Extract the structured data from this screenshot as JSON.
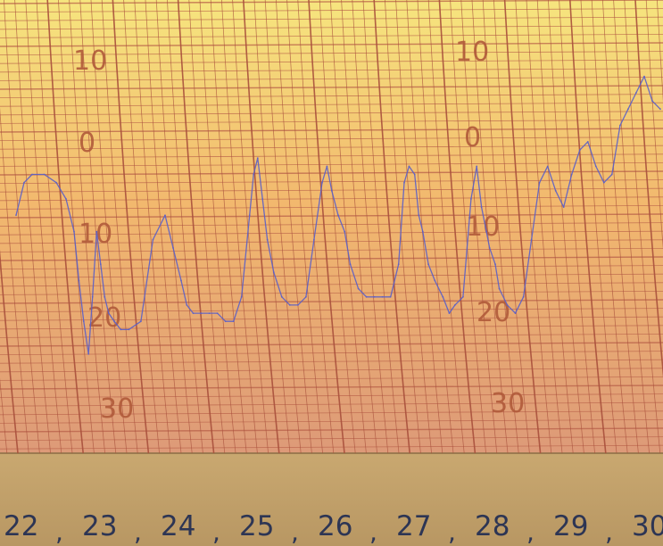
{
  "chart_data": {
    "type": "line",
    "title": "",
    "xlabel": "",
    "ylabel": "",
    "inverted_y": true,
    "grid": true,
    "scale_labels_left": [
      "10",
      "0",
      "10",
      "20",
      "30"
    ],
    "scale_labels_right": [
      "10",
      "0",
      "10",
      "20",
      "30"
    ],
    "day_labels": [
      "22",
      "23",
      "24",
      "25",
      "26",
      "27",
      "28",
      "29",
      "30"
    ],
    "x_unit": "day",
    "xlim": [
      22,
      30
    ],
    "ylim": [
      -14,
      33
    ],
    "series": [
      {
        "color": "#5a5fc8",
        "x": [
          22.0,
          22.1,
          22.2,
          22.35,
          22.5,
          22.62,
          22.72,
          22.78,
          22.84,
          22.9,
          22.95,
          23.0,
          23.05,
          23.1,
          23.15,
          23.22,
          23.3,
          23.4,
          23.55,
          23.7,
          23.85,
          23.95,
          24.05,
          24.12,
          24.2,
          24.3,
          24.4,
          24.5,
          24.6,
          24.7,
          24.8,
          24.9,
          24.95,
          25.0,
          25.06,
          25.12,
          25.2,
          25.3,
          25.4,
          25.5,
          25.6,
          25.7,
          25.8,
          25.86,
          25.92,
          26.0,
          26.08,
          26.15,
          26.25,
          26.35,
          26.45,
          26.55,
          26.65,
          26.75,
          26.82,
          26.88,
          26.95,
          27.0,
          27.05,
          27.12,
          27.2,
          27.3,
          27.38,
          27.45,
          27.55,
          27.65,
          27.72,
          27.78,
          27.84,
          27.88,
          27.95,
          28.0,
          28.1,
          28.2,
          28.3,
          28.4,
          28.5,
          28.6,
          28.7,
          28.8,
          28.9,
          29.0,
          29.1,
          29.2,
          29.3,
          29.4,
          29.5,
          29.6,
          29.7,
          29.8,
          29.9,
          30.0
        ],
        "values": [
          8,
          4,
          3,
          3,
          4,
          6,
          10,
          16,
          21,
          25,
          18,
          10,
          14,
          18,
          20,
          21,
          22,
          22,
          21,
          11,
          8,
          12,
          16,
          19,
          20,
          20,
          20,
          20,
          21,
          21,
          18,
          8,
          3,
          1,
          6,
          11,
          15,
          18,
          19,
          19,
          18,
          11,
          4,
          2,
          5,
          8,
          10,
          14,
          17,
          18,
          18,
          18,
          18,
          14,
          4,
          2,
          3,
          8,
          10,
          14,
          16,
          18,
          20,
          19,
          18,
          6,
          2,
          7,
          10,
          12,
          14,
          17,
          19,
          20,
          18,
          11,
          4,
          2,
          5,
          7,
          3,
          0,
          -1,
          2,
          4,
          3,
          -3,
          -5,
          -7,
          -9,
          -6,
          -5
        ]
      }
    ]
  }
}
